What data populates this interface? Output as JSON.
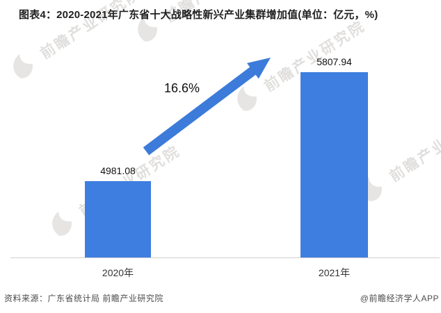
{
  "title": "图表4：2020-2021年广东省十大战略性新兴产业集群增加值(单位：亿元，%)",
  "chart_data": {
    "type": "bar",
    "title": "2020-2021年广东省十大战略性新兴产业集群增加值",
    "unit_label": "单位：亿元，%",
    "categories": [
      "2020年",
      "2021年"
    ],
    "values": [
      4981.08,
      5807.94
    ],
    "value_labels": [
      "4981.08",
      "5807.94"
    ],
    "growth_label": "16.6%",
    "ylim": [
      4400,
      5853
    ],
    "grid": false,
    "legend": "none",
    "bar_color": "#3e7ee0",
    "arrow_color": "#3c7bd9",
    "axis_color": "#cfcfcf"
  },
  "watermark": {
    "text": "前瞻产业研究院"
  },
  "footer": {
    "source": "资料来源：广东省统计局 前瞻产业研究院",
    "credit": "@前瞻经济学人APP"
  }
}
